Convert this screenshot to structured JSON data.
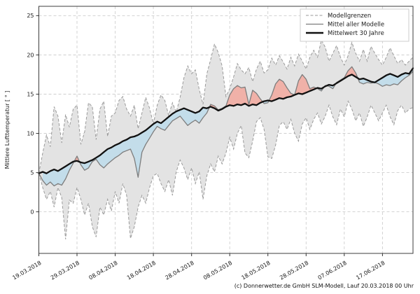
{
  "figure": {
    "footer": "(c) Donnerwetter.de GmbH SLM-Modell, Lauf 20.03.2018 00 Uhr"
  },
  "legend": {
    "items": [
      {
        "label": "Modellgrenzen",
        "style": "dashed",
        "color": "#9a9a9a"
      },
      {
        "label": "Mittel aller Modelle",
        "style": "solid",
        "color": "#7d7d7d"
      },
      {
        "label": "Mittelwert 30 Jahre",
        "style": "solid-thick",
        "color": "#111111"
      }
    ]
  },
  "chart_data": {
    "type": "line",
    "title": "",
    "xlabel": "",
    "ylabel": "Mittlere Lufttemperatur [ ° ]",
    "grid": true,
    "legend_position": "top-right",
    "x_start": "19.03.2018",
    "x_end": "25.06.2018",
    "x_range_days": 98,
    "x_tick_days": [
      0,
      10,
      20,
      30,
      40,
      50,
      60,
      70,
      80,
      90
    ],
    "x_tick_labels": [
      "19.03.2018",
      "29.03.2018",
      "08.04.2018",
      "18.04.2018",
      "28.04.2018",
      "08.05.2018",
      "18.05.2018",
      "28.05.2018",
      "07.06.2018",
      "17.06.2018"
    ],
    "y_ticks": [
      0,
      5,
      10,
      15,
      20,
      25
    ],
    "ylim": [
      -5.3,
      26.2
    ],
    "colors": {
      "envelope_fill": "#e3e3e3",
      "envelope_border": "#9a9a9a",
      "model_mean": "#7d7d7d",
      "mean30": "#111111",
      "above_fill": "#f0b1a8",
      "below_fill": "#c3ddea",
      "grid": "#cfcfcf"
    },
    "series": [
      {
        "key": "upper",
        "name": "Modellgrenzen (obere Grenze)",
        "values": [
          4.9,
          7.5,
          9.8,
          8.3,
          13.4,
          12.2,
          8.8,
          12.4,
          10.8,
          13.1,
          13.6,
          8.6,
          10.2,
          13.9,
          13.4,
          9.2,
          13.1,
          14.1,
          9.6,
          12.2,
          12.6,
          14.2,
          14.7,
          13.1,
          12.2,
          13.6,
          10.6,
          12.6,
          14.6,
          13.2,
          11.2,
          13.6,
          14.9,
          14.2,
          12.3,
          13.9,
          12.7,
          14.6,
          17.1,
          18.6,
          17.6,
          18.1,
          15.6,
          13.7,
          17.6,
          19.4,
          21.4,
          20.3,
          18.6,
          14.7,
          15.7,
          17.2,
          18.9,
          18.1,
          17.6,
          18.4,
          16.6,
          18.2,
          19.2,
          17.7,
          18.1,
          19.6,
          18.7,
          19.9,
          19.1,
          18.2,
          19.7,
          18.6,
          20.1,
          19.2,
          18.2,
          19.7,
          20.6,
          19.7,
          21.9,
          21.0,
          19.2,
          20.2,
          21.2,
          19.7,
          18.7,
          19.9,
          21.6,
          20.2,
          19.2,
          20.7,
          19.2,
          21.1,
          20.2,
          19.4,
          18.7,
          19.7,
          20.9,
          19.9,
          18.9,
          19.4,
          18.7,
          19.2,
          19.7
        ]
      },
      {
        "key": "lower",
        "name": "Modellgrenzen (untere Grenze)",
        "values": [
          4.9,
          3.1,
          1.6,
          2.6,
          0.6,
          3.1,
          1.8,
          -3.5,
          1.5,
          1.1,
          3.1,
          1.6,
          -0.4,
          1.1,
          -1.9,
          -3.2,
          0.6,
          -0.4,
          1.6,
          0.1,
          2.6,
          1.1,
          3.6,
          2.1,
          -3.4,
          -1.9,
          0.6,
          2.1,
          1.1,
          3.1,
          4.6,
          4.9,
          3.6,
          2.6,
          4.1,
          2.1,
          5.1,
          6.6,
          5.6,
          4.1,
          5.6,
          3.6,
          5.1,
          1.6,
          4.6,
          6.1,
          5.1,
          7.1,
          6.1,
          7.5,
          9.5,
          8.0,
          10.0,
          11.0,
          7.5,
          6.9,
          9.0,
          11.5,
          12.0,
          10.5,
          7.0,
          6.8,
          8.5,
          11.0,
          11.5,
          10.5,
          11.8,
          10.0,
          9.0,
          11.2,
          12.0,
          10.5,
          11.8,
          12.6,
          11.2,
          12.2,
          13.6,
          12.1,
          11.1,
          13.1,
          12.1,
          14.1,
          13.1,
          11.6,
          12.6,
          10.9,
          12.1,
          13.6,
          12.6,
          11.6,
          12.6,
          13.6,
          12.1,
          11.1,
          12.9,
          13.6,
          12.6,
          13.1,
          13.3
        ]
      },
      {
        "key": "model_mean",
        "name": "Mittel aller Modelle",
        "values": [
          4.9,
          4.0,
          3.4,
          3.8,
          3.3,
          3.6,
          3.4,
          4.2,
          5.3,
          6.2,
          7.1,
          6.0,
          5.3,
          5.6,
          6.4,
          6.7,
          6.0,
          5.6,
          6.1,
          6.5,
          6.9,
          7.2,
          7.6,
          7.8,
          8.0,
          6.8,
          4.4,
          7.6,
          8.6,
          9.4,
          10.2,
          10.9,
          10.6,
          10.4,
          11.0,
          11.6,
          11.9,
          12.2,
          11.6,
          11.0,
          11.4,
          11.7,
          11.3,
          12.0,
          12.6,
          13.7,
          13.5,
          13.0,
          13.2,
          13.5,
          14.9,
          15.7,
          16.1,
          15.8,
          15.9,
          13.7,
          15.5,
          15.1,
          14.4,
          13.8,
          13.9,
          14.9,
          16.3,
          16.9,
          16.6,
          15.8,
          15.1,
          14.9,
          16.7,
          17.5,
          16.9,
          15.7,
          15.9,
          15.7,
          15.4,
          16.1,
          16.0,
          15.7,
          16.5,
          16.8,
          17.1,
          18.0,
          18.5,
          17.7,
          16.5,
          16.3,
          16.5,
          16.4,
          16.5,
          16.3,
          16.0,
          16.2,
          16.1,
          16.3,
          16.2,
          16.7,
          17.1,
          17.4,
          17.9
        ]
      },
      {
        "key": "mean30",
        "name": "Mittelwert 30 Jahre",
        "values": [
          4.9,
          5.1,
          4.9,
          5.2,
          5.4,
          5.2,
          5.5,
          5.8,
          6.1,
          6.4,
          6.5,
          6.3,
          6.2,
          6.4,
          6.6,
          6.9,
          7.2,
          7.6,
          8.0,
          8.2,
          8.5,
          8.7,
          9.0,
          9.2,
          9.5,
          9.6,
          9.8,
          10.1,
          10.4,
          10.8,
          11.2,
          11.5,
          11.3,
          11.7,
          12.1,
          12.5,
          12.8,
          13.0,
          13.2,
          13.0,
          12.8,
          12.6,
          12.8,
          13.3,
          13.2,
          13.4,
          13.2,
          12.9,
          13.1,
          13.4,
          13.6,
          13.5,
          13.7,
          13.6,
          13.8,
          13.5,
          13.7,
          13.6,
          13.9,
          14.1,
          14.2,
          14.1,
          14.3,
          14.5,
          14.4,
          14.6,
          14.7,
          14.9,
          15.1,
          15.0,
          15.2,
          15.4,
          15.6,
          15.8,
          15.7,
          16.0,
          16.2,
          16.1,
          16.4,
          16.7,
          17.0,
          17.3,
          17.5,
          17.2,
          16.9,
          17.0,
          16.8,
          16.6,
          16.5,
          16.8,
          17.1,
          17.4,
          17.6,
          17.4,
          17.2,
          17.5,
          17.7,
          17.6,
          18.3
        ]
      }
    ]
  }
}
